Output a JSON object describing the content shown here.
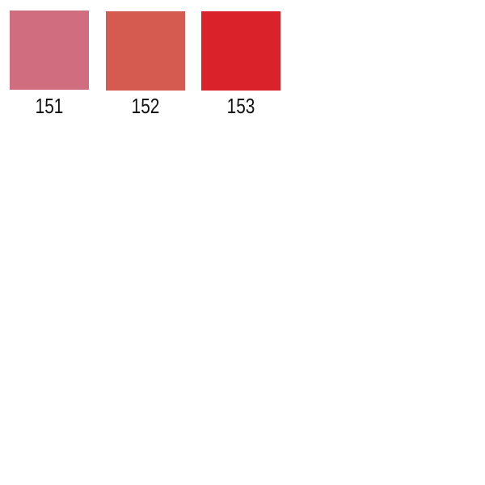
{
  "swatches": [
    {
      "label": "151",
      "color": "#D06E80"
    },
    {
      "label": "152",
      "color": "#D55A50"
    },
    {
      "label": "153",
      "color": "#D92229"
    }
  ]
}
